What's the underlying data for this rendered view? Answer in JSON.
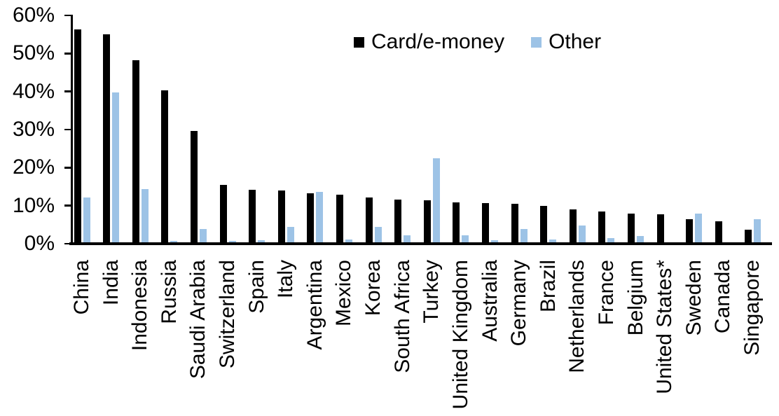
{
  "chart_data": {
    "type": "bar",
    "title": "",
    "categories": [
      "China",
      "India",
      "Indonesia",
      "Russia",
      "Saudi Arabia",
      "Switzerland",
      "Spain",
      "Italy",
      "Argentina",
      "Mexico",
      "Korea",
      "South Africa",
      "Turkey",
      "United Kingdom",
      "Australia",
      "Germany",
      "Brazil",
      "Netherlands",
      "France",
      "Belgium",
      "United States*",
      "Sweden",
      "Canada",
      "Singapore"
    ],
    "series": [
      {
        "name": "Card/e-money",
        "color": "#000000",
        "values": [
          56.4,
          55.0,
          48.2,
          40.4,
          29.7,
          15.5,
          14.1,
          13.9,
          13.2,
          12.8,
          12.1,
          11.6,
          11.4,
          10.9,
          10.7,
          10.5,
          9.9,
          9.0,
          8.5,
          8.0,
          7.7,
          6.4,
          5.8,
          3.7
        ]
      },
      {
        "name": "Other",
        "color": "#9DC3E6",
        "values": [
          12.2,
          39.8,
          14.4,
          0.8,
          3.8,
          0.7,
          0.9,
          4.4,
          13.6,
          1.1,
          4.5,
          2.3,
          22.4,
          2.3,
          1.0,
          3.9,
          1.1,
          4.7,
          1.5,
          2.0,
          0.3,
          7.9,
          0.0,
          6.5
        ]
      }
    ],
    "y_axis": {
      "min": 0,
      "max": 60,
      "tick_step": 10,
      "tick_labels": [
        "0%",
        "10%",
        "20%",
        "30%",
        "40%",
        "50%",
        "60%"
      ],
      "format": "percent"
    },
    "grid": false,
    "legend_position": "top-center",
    "x_label_rotation": -90,
    "axis_color": "#000000",
    "background_color": "#FFFFFF"
  }
}
